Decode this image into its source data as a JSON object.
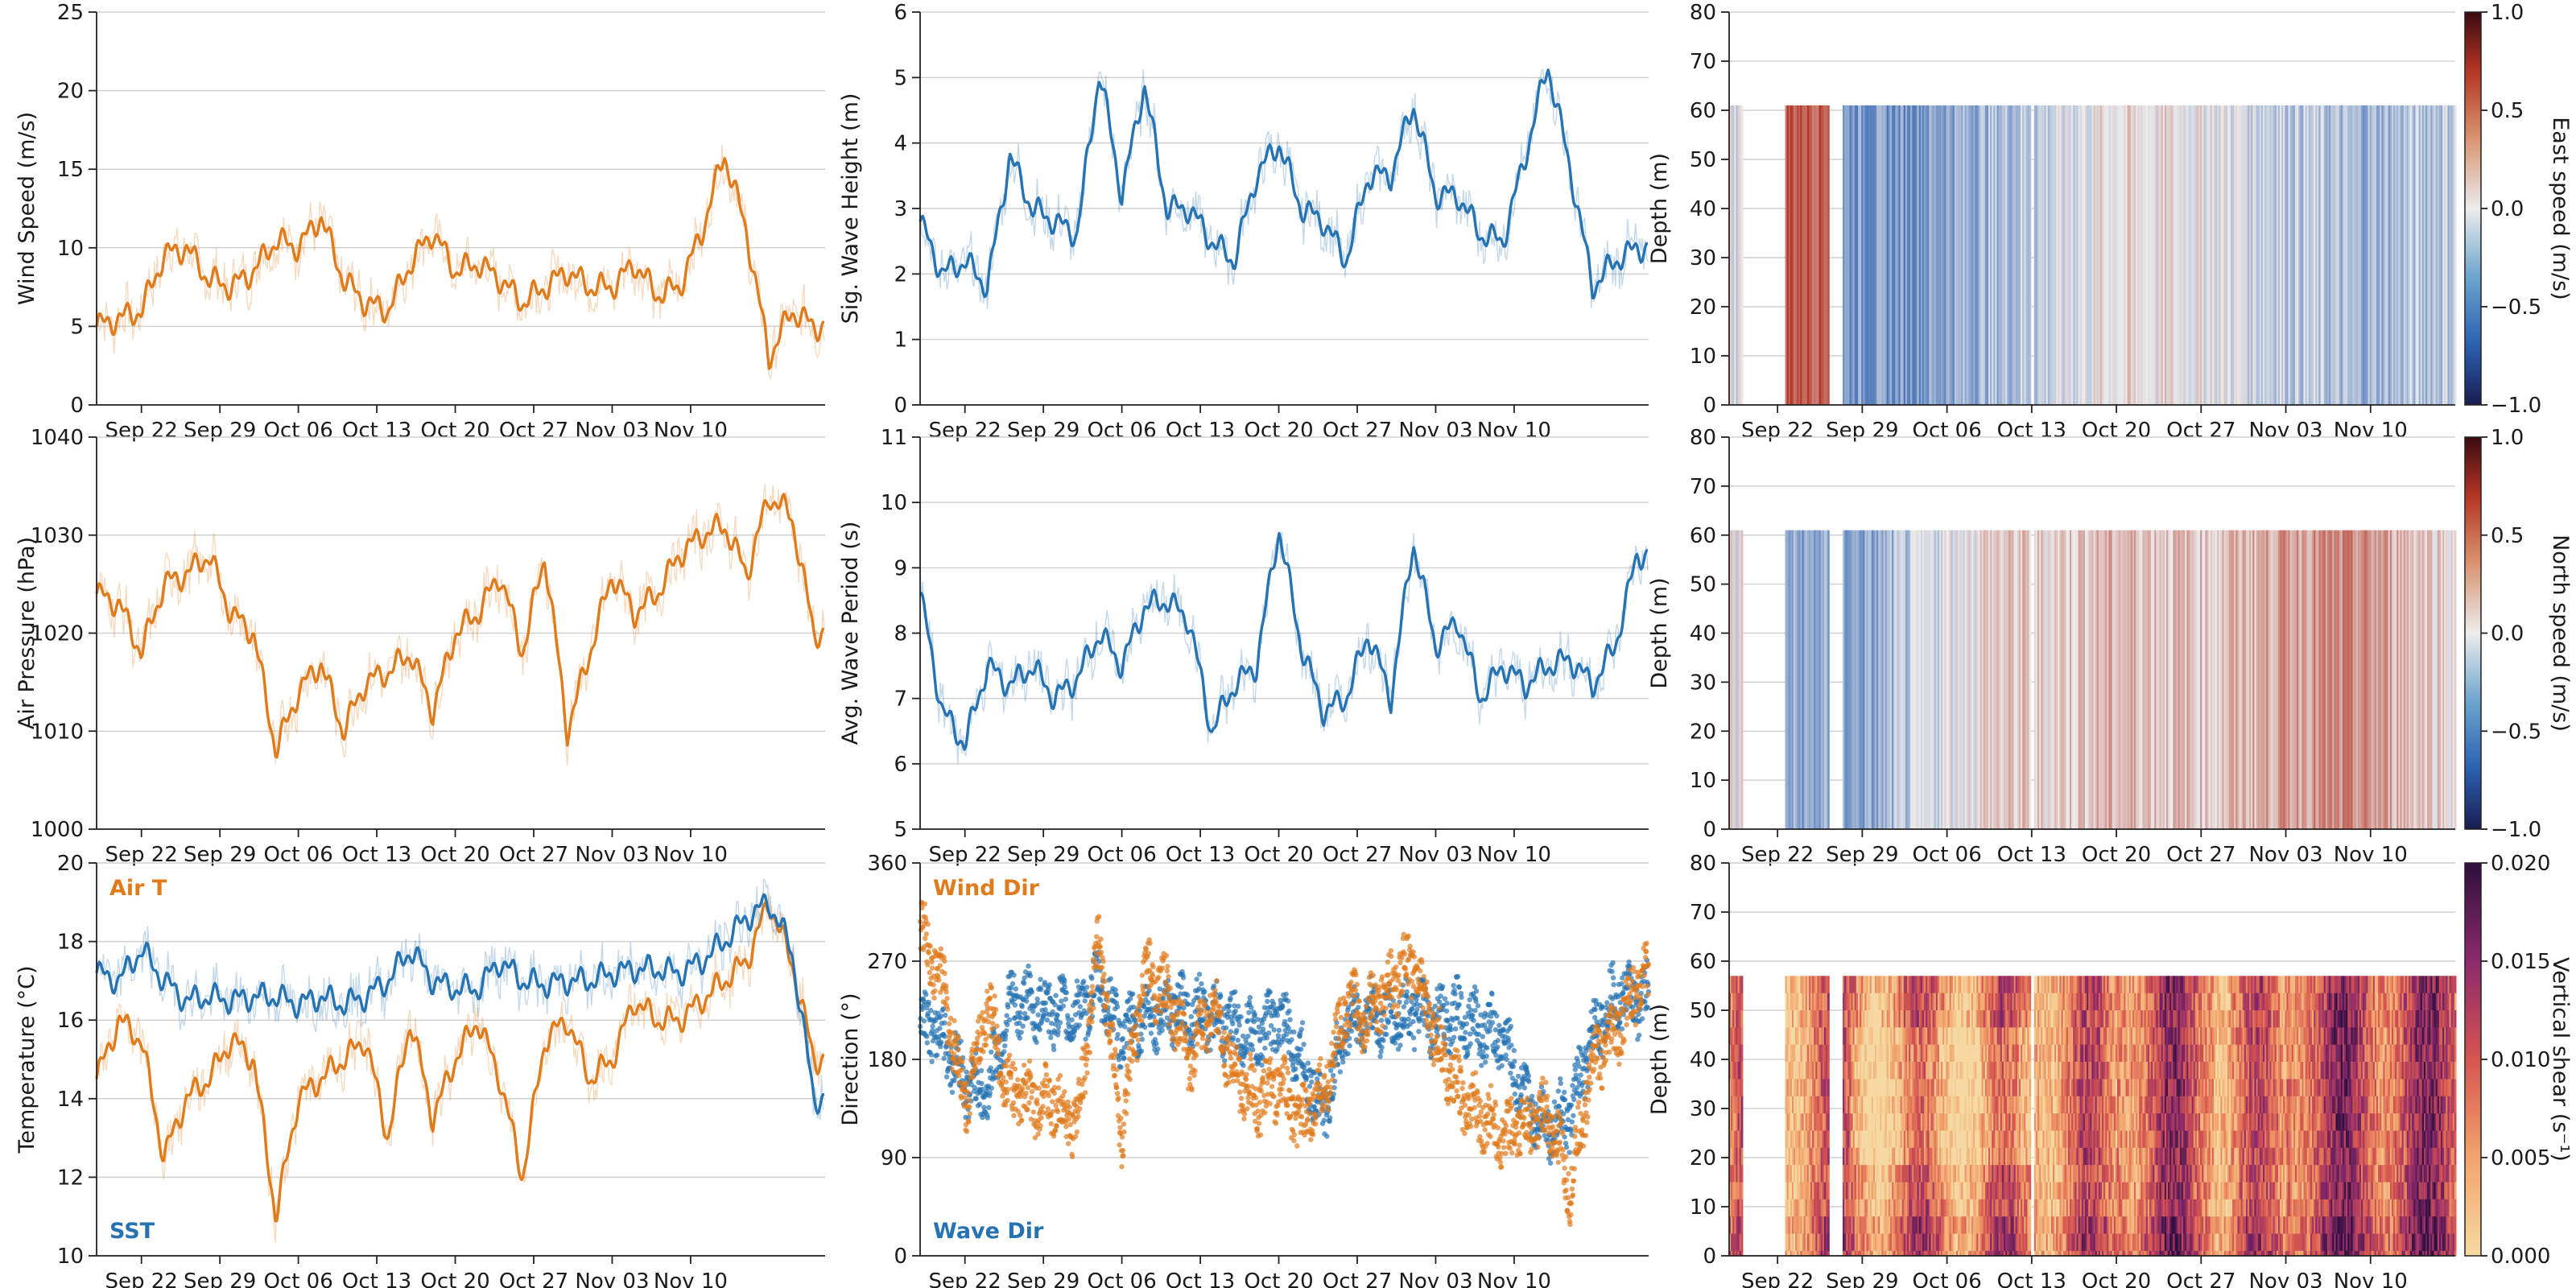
{
  "chart_data": [
    {
      "panel": "wind-speed",
      "type": "line",
      "ylabel": "Wind Speed (m/s)",
      "ylim": [
        0,
        25
      ],
      "yticks": [
        0,
        5,
        10,
        15,
        20,
        25
      ],
      "color": "#e07b1c",
      "series": [
        {
          "name": "Wind Speed (smoothed)",
          "x_days": [
            0,
            2,
            4,
            6,
            8,
            10,
            12,
            14,
            16,
            18,
            20,
            22,
            24,
            26,
            28,
            30,
            32,
            34,
            36,
            38,
            40,
            42,
            44,
            46,
            48,
            50,
            52,
            54,
            56,
            58,
            60,
            62,
            64
          ],
          "values": [
            5.0,
            5.5,
            6.0,
            9.5,
            10.0,
            8.0,
            7.5,
            8.5,
            10.5,
            10.0,
            12.0,
            8.0,
            6.5,
            6.0,
            9.0,
            11.0,
            8.5,
            9.0,
            8.0,
            6.5,
            7.5,
            8.5,
            7.5,
            7.5,
            9.0,
            7.0,
            7.5,
            11.0,
            16.0,
            11.0,
            3.0,
            6.0,
            5.0
          ]
        }
      ]
    },
    {
      "panel": "wave-height",
      "type": "line",
      "ylabel": "Sig. Wave Height (m)",
      "ylim": [
        0,
        6
      ],
      "yticks": [
        0,
        1,
        2,
        3,
        4,
        5,
        6
      ],
      "color": "#2673b3",
      "series": [
        {
          "name": "Sig. Wave Height",
          "x_days": [
            0,
            2,
            4,
            6,
            8,
            10,
            12,
            14,
            16,
            18,
            20,
            22,
            24,
            26,
            28,
            30,
            32,
            34,
            36,
            38,
            40,
            42,
            44,
            46,
            48,
            50,
            52,
            54,
            56,
            58,
            60,
            62,
            64
          ],
          "values": [
            2.8,
            2.0,
            2.2,
            1.8,
            3.8,
            3.0,
            2.8,
            2.6,
            5.1,
            3.2,
            4.9,
            3.0,
            3.0,
            2.5,
            2.2,
            3.5,
            4.0,
            3.0,
            2.8,
            2.2,
            3.5,
            3.5,
            4.6,
            3.2,
            3.2,
            2.6,
            2.5,
            3.8,
            5.2,
            3.6,
            1.8,
            2.2,
            2.4
          ]
        }
      ]
    },
    {
      "panel": "east-speed",
      "type": "heatmap",
      "ylabel": "Depth (m)",
      "ylim": [
        80,
        0
      ],
      "yticks": [
        0,
        10,
        20,
        30,
        40,
        50,
        60,
        70,
        80
      ],
      "colorbar": {
        "label": "East speed (m/s)",
        "range": [
          -1.0,
          1.0
        ],
        "ticks": [
          "1.0",
          "0.5",
          "0.0",
          "−0.5",
          "−1.0"
        ],
        "colormap": "diverging"
      }
    },
    {
      "panel": "air-pressure",
      "type": "line",
      "ylabel": "Air Pressure (hPa)",
      "ylim": [
        1000,
        1040
      ],
      "yticks": [
        1000,
        1010,
        1020,
        1030,
        1040
      ],
      "color": "#e07b1c",
      "series": [
        {
          "name": "Air Pressure",
          "x_days": [
            0,
            2,
            4,
            6,
            8,
            10,
            12,
            14,
            16,
            18,
            20,
            22,
            24,
            26,
            28,
            30,
            32,
            34,
            36,
            38,
            40,
            42,
            44,
            46,
            48,
            50,
            52,
            54,
            56,
            58,
            60,
            62,
            64
          ],
          "values": [
            1024,
            1023,
            1018,
            1025,
            1026,
            1028,
            1022,
            1020,
            1008,
            1014,
            1017,
            1010,
            1015,
            1016,
            1018,
            1012,
            1020,
            1022,
            1026,
            1018,
            1028,
            1010,
            1018,
            1026,
            1022,
            1024,
            1028,
            1030,
            1031,
            1026,
            1034,
            1032,
            1020
          ]
        }
      ]
    },
    {
      "panel": "wave-period",
      "type": "line",
      "ylabel": "Avg. Wave Period (s)",
      "ylim": [
        5,
        11
      ],
      "yticks": [
        5,
        6,
        7,
        8,
        9,
        10,
        11
      ],
      "color": "#2673b3",
      "series": [
        {
          "name": "Avg. Wave Period",
          "x_days": [
            0,
            2,
            4,
            6,
            8,
            10,
            12,
            14,
            16,
            18,
            20,
            22,
            24,
            26,
            28,
            30,
            32,
            34,
            36,
            38,
            40,
            42,
            44,
            46,
            48,
            50,
            52,
            54,
            56,
            58,
            60,
            62,
            64
          ],
          "values": [
            8.6,
            6.8,
            6.3,
            7.5,
            7.2,
            7.5,
            7.0,
            7.3,
            8.0,
            7.5,
            8.4,
            8.5,
            8.2,
            6.5,
            7.2,
            7.5,
            9.6,
            7.8,
            6.8,
            7.0,
            8.0,
            7.0,
            9.4,
            7.8,
            8.2,
            7.0,
            7.5,
            7.2,
            7.5,
            7.6,
            7.2,
            7.8,
            9.2
          ]
        }
      ]
    },
    {
      "panel": "north-speed",
      "type": "heatmap",
      "ylabel": "Depth (m)",
      "ylim": [
        80,
        0
      ],
      "yticks": [
        0,
        10,
        20,
        30,
        40,
        50,
        60,
        70,
        80
      ],
      "colorbar": {
        "label": "North speed (m/s)",
        "range": [
          -1.0,
          1.0
        ],
        "ticks": [
          "1.0",
          "0.5",
          "0.0",
          "−0.5",
          "−1.0"
        ],
        "colormap": "diverging"
      }
    },
    {
      "panel": "temperature",
      "type": "line",
      "ylabel": "Temperature (°C)",
      "ylim": [
        10,
        20
      ],
      "yticks": [
        10,
        12,
        14,
        16,
        18,
        20
      ],
      "annotations": [
        "Air T",
        "SST"
      ],
      "series": [
        {
          "name": "Air T",
          "color": "#e07b1c",
          "x_days": [
            0,
            2,
            4,
            6,
            8,
            10,
            12,
            14,
            16,
            18,
            20,
            22,
            24,
            26,
            28,
            30,
            32,
            34,
            36,
            38,
            40,
            42,
            44,
            46,
            48,
            50,
            52,
            54,
            56,
            58,
            60,
            62,
            64
          ],
          "values": [
            14.5,
            16.0,
            15.5,
            12.5,
            14.0,
            14.5,
            15.5,
            15.0,
            11.0,
            14.0,
            14.5,
            15.0,
            15.5,
            13.0,
            16.0,
            13.5,
            15.0,
            16.0,
            14.5,
            12.0,
            15.5,
            16.0,
            14.5,
            15.0,
            16.5,
            16.0,
            16.0,
            16.5,
            17.0,
            17.5,
            19.0,
            17.5,
            15.0
          ]
        },
        {
          "name": "SST",
          "color": "#2673b3",
          "x_days": [
            0,
            2,
            4,
            6,
            8,
            10,
            12,
            14,
            16,
            18,
            20,
            22,
            24,
            26,
            28,
            30,
            32,
            34,
            36,
            38,
            40,
            42,
            44,
            46,
            48,
            50,
            52,
            54,
            56,
            58,
            60,
            62,
            64
          ],
          "values": [
            17.2,
            17.0,
            17.8,
            17.0,
            16.5,
            16.6,
            16.5,
            16.6,
            16.6,
            16.4,
            16.6,
            16.4,
            16.6,
            17.0,
            17.8,
            17.0,
            16.8,
            16.8,
            17.5,
            17.0,
            16.9,
            17.0,
            17.0,
            17.2,
            17.3,
            17.3,
            17.2,
            17.5,
            18.0,
            18.6,
            19.0,
            17.8,
            14.0
          ]
        }
      ]
    },
    {
      "panel": "direction",
      "type": "scatter",
      "ylabel": "Direction (°)",
      "ylim": [
        0,
        360
      ],
      "yticks": [
        0,
        90,
        180,
        270,
        360
      ],
      "annotations": [
        "Wind Dir",
        "Wave Dir"
      ],
      "series": [
        {
          "name": "Wind Dir",
          "color": "#e07b1c",
          "x_days": [
            0,
            2,
            4,
            6,
            8,
            10,
            12,
            14,
            16,
            18,
            20,
            22,
            24,
            26,
            28,
            30,
            32,
            34,
            36,
            38,
            40,
            42,
            44,
            46,
            48,
            50,
            52,
            54,
            56,
            58,
            60,
            62,
            64
          ],
          "values": [
            300,
            250,
            140,
            230,
            150,
            145,
            140,
            120,
            290,
            110,
            260,
            240,
            180,
            230,
            170,
            140,
            160,
            120,
            150,
            230,
            220,
            250,
            270,
            200,
            150,
            130,
            110,
            120,
            130,
            60,
            180,
            200,
            250
          ]
        },
        {
          "name": "Wave Dir",
          "color": "#2673b3",
          "x_days": [
            0,
            2,
            4,
            6,
            8,
            10,
            12,
            14,
            16,
            18,
            20,
            22,
            24,
            26,
            28,
            30,
            32,
            34,
            36,
            38,
            40,
            42,
            44,
            46,
            48,
            50,
            52,
            54,
            56,
            58,
            60,
            62,
            64
          ],
          "values": [
            220,
            200,
            160,
            150,
            230,
            230,
            225,
            220,
            250,
            200,
            220,
            225,
            225,
            220,
            210,
            200,
            220,
            180,
            130,
            210,
            220,
            215,
            225,
            215,
            220,
            210,
            200,
            140,
            120,
            130,
            200,
            240,
            235
          ]
        }
      ]
    },
    {
      "panel": "vertical-shear",
      "type": "heatmap",
      "ylabel": "Depth (m)",
      "ylim": [
        80,
        0
      ],
      "yticks": [
        0,
        10,
        20,
        30,
        40,
        50,
        60,
        70,
        80
      ],
      "colorbar": {
        "label": "Vertical shear (s⁻¹)",
        "range": [
          0.0,
          0.02
        ],
        "ticks": [
          "0.020",
          "0.015",
          "0.010",
          "0.005",
          "0.000"
        ],
        "colormap": "sequential"
      }
    }
  ],
  "time_axis": {
    "line_panels": {
      "start": "Sep 18",
      "span_days": 65,
      "tick_labels": [
        "Sep 22",
        "Sep 29",
        "Oct 06",
        "Oct 13",
        "Oct 20",
        "Oct 27",
        "Nov 03",
        "Nov 10"
      ],
      "tick_days": [
        4,
        11,
        18,
        25,
        32,
        39,
        46,
        53
      ]
    },
    "heatmap_panels": {
      "start": "Sep 18",
      "span_days": 60,
      "tick_labels": [
        "Sep 22",
        "Sep 29",
        "Oct 06",
        "Oct 13",
        "Oct 20",
        "Oct 27",
        "Nov 03",
        "Nov 10"
      ],
      "tick_days": [
        4,
        11,
        18,
        25,
        32,
        39,
        46,
        53
      ]
    }
  },
  "colors": {
    "orange": "#e07b1c",
    "blue": "#2673b3"
  }
}
